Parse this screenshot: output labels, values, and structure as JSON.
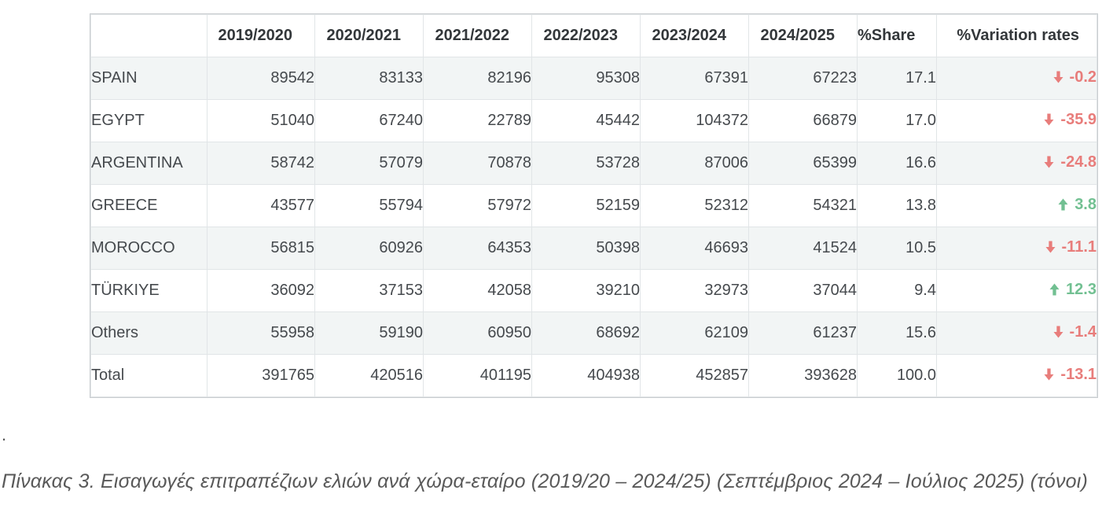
{
  "chart_data": {
    "type": "table",
    "title": "Πίνακας 3",
    "columns": [
      "",
      "2019/2020",
      "2020/2021",
      "2021/2022",
      "2022/2023",
      "2023/2024",
      "2024/2025",
      "%Share",
      "%Variation rates"
    ],
    "rows": [
      {
        "name": "SPAIN",
        "values": [
          89542,
          83133,
          82196,
          95308,
          67391,
          67223
        ],
        "share": "17.1",
        "variation_direction": "down",
        "variation_value": "-0.2"
      },
      {
        "name": "EGYPT",
        "values": [
          51040,
          67240,
          22789,
          45442,
          104372,
          66879
        ],
        "share": "17.0",
        "variation_direction": "down",
        "variation_value": "-35.9"
      },
      {
        "name": "ARGENTINA",
        "values": [
          58742,
          57079,
          70878,
          53728,
          87006,
          65399
        ],
        "share": "16.6",
        "variation_direction": "down",
        "variation_value": "-24.8"
      },
      {
        "name": "GREECE",
        "values": [
          43577,
          55794,
          57972,
          52159,
          52312,
          54321
        ],
        "share": "13.8",
        "variation_direction": "up",
        "variation_value": "3.8"
      },
      {
        "name": "MOROCCO",
        "values": [
          56815,
          60926,
          64353,
          50398,
          46693,
          41524
        ],
        "share": "10.5",
        "variation_direction": "down",
        "variation_value": "-11.1"
      },
      {
        "name": "TÜRKIYE",
        "values": [
          36092,
          37153,
          42058,
          39210,
          32973,
          37044
        ],
        "share": "9.4",
        "variation_direction": "up",
        "variation_value": "12.3"
      },
      {
        "name": "Others",
        "values": [
          55958,
          59190,
          60950,
          68692,
          62109,
          61237
        ],
        "share": "15.6",
        "variation_direction": "down",
        "variation_value": "-1.4"
      },
      {
        "name": "Total",
        "values": [
          391765,
          420516,
          401195,
          404938,
          452857,
          393628
        ],
        "share": "100.0",
        "variation_direction": "down",
        "variation_value": "-13.1"
      }
    ],
    "caption": "Πίνακας 3. Εισαγωγές επιτραπέζιων ελιών ανά χώρα-εταίρο (2019/20 – 2024/25) (Σεπτέμβριος 2024 – Ιούλιος 2025) (τόνοι)"
  },
  "page": {
    "stray_dot": "."
  },
  "colors": {
    "negative": "#e87d7b",
    "positive": "#72c092",
    "stripe_row_bg": "#f2f5f5",
    "body_text": "#45494d",
    "header_text": "#33373a",
    "caption_text": "#595959"
  }
}
